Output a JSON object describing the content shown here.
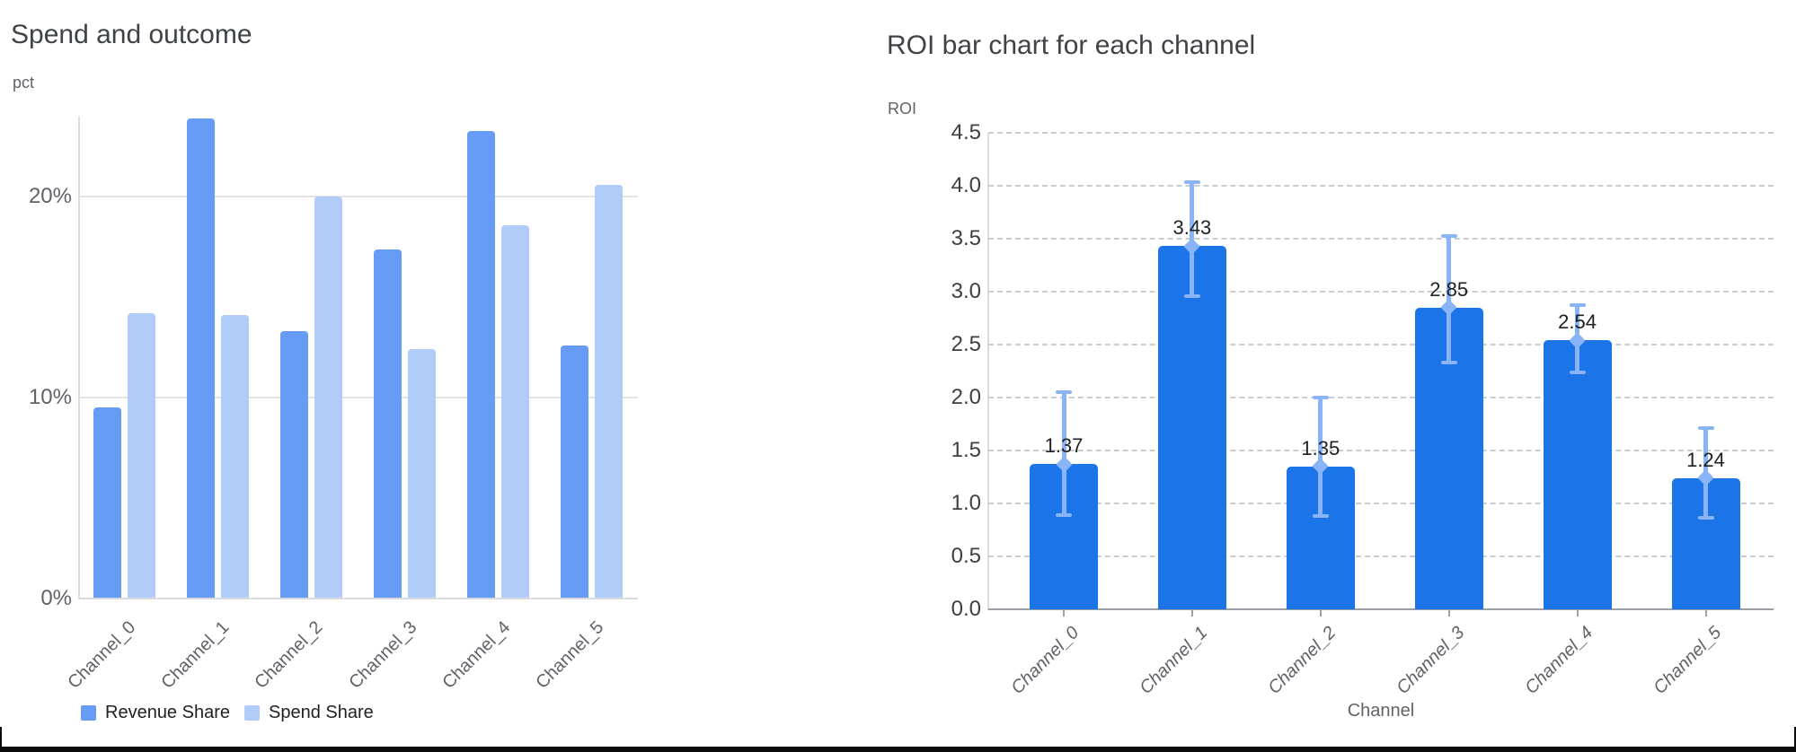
{
  "page": {
    "background": "#ffffff",
    "frame_color": "#0b0b0b"
  },
  "chart_data": [
    {
      "id": "spend-and-outcome",
      "type": "bar",
      "title": "Spend and outcome",
      "xlabel": "",
      "ylabel": "pct",
      "categories": [
        "Channel_0",
        "Channel_1",
        "Channel_2",
        "Channel_3",
        "Channel_4",
        "Channel_5"
      ],
      "series": [
        {
          "name": "Revenue Share",
          "color": "#669cf6",
          "values": [
            9.5,
            23.9,
            13.3,
            17.4,
            23.3,
            12.6
          ]
        },
        {
          "name": "Spend Share",
          "color": "#b1ccf8",
          "values": [
            14.2,
            14.1,
            20.0,
            12.4,
            18.6,
            20.6
          ]
        }
      ],
      "value_unit": "%",
      "ylim": [
        0,
        24
      ],
      "yticks": [
        {
          "value": 0,
          "label": "0%"
        },
        {
          "value": 10,
          "label": "10%"
        },
        {
          "value": 20,
          "label": "20%"
        }
      ],
      "grid": "solid horizontal",
      "legend_position": "bottom-left",
      "grid_color": "#e3e3e3",
      "axis_color": "#dadce0"
    },
    {
      "id": "roi-by-channel",
      "type": "bar",
      "title": "ROI bar chart for each channel",
      "xlabel": "Channel",
      "ylabel": "ROI",
      "categories": [
        "Channel_0",
        "Channel_1",
        "Channel_2",
        "Channel_3",
        "Channel_4",
        "Channel_5"
      ],
      "values": [
        1.37,
        3.43,
        1.35,
        2.85,
        2.54,
        1.24
      ],
      "value_labels": [
        "1.37",
        "3.43",
        "1.35",
        "2.85",
        "2.54",
        "1.24"
      ],
      "error_low": [
        0.89,
        2.96,
        0.88,
        2.33,
        2.24,
        0.86
      ],
      "error_high": [
        2.05,
        4.03,
        2.0,
        3.52,
        2.87,
        1.71
      ],
      "ylim": [
        0,
        4.5
      ],
      "ytick_labels": [
        "0.0",
        "0.5",
        "1.0",
        "1.5",
        "2.0",
        "2.5",
        "3.0",
        "3.5",
        "4.0",
        "4.5"
      ],
      "grid": "dashed horizontal",
      "legend_position": "none",
      "bar_color": "#1b74e8",
      "error_color": "#8ab4f8",
      "grid_color": "#c9ccd0",
      "baseline_color": "#9aa0a6",
      "axis_color": "#dadce0"
    }
  ],
  "left_header": {
    "title": "Spend and outcome",
    "y_axis_label": "pct"
  },
  "right_header": {
    "title": "ROI bar chart for each channel",
    "y_axis_label": "ROI",
    "x_axis_title": "Channel"
  },
  "legend": {
    "items": [
      "Revenue Share",
      "Spend Share"
    ]
  }
}
